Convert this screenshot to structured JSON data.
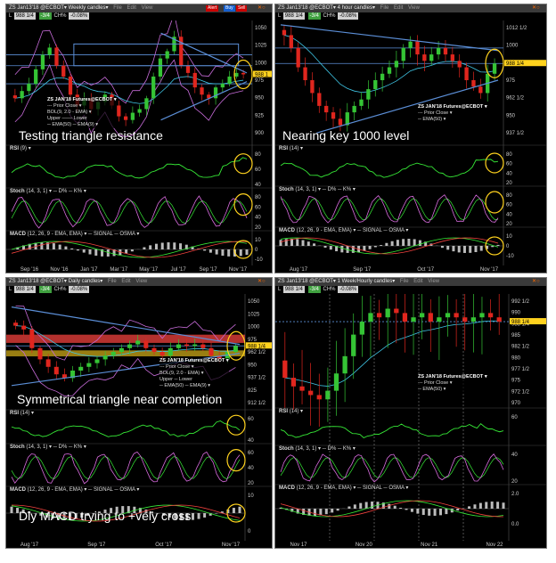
{
  "colors": {
    "up": "#35c435",
    "down": "#e0261e",
    "bb": "#c66bd8",
    "ema": "#3fc6e6",
    "trend": "#5b8ed6",
    "rsi": "#36e836",
    "stochD": "#36e836",
    "stochK": "#d86bde",
    "highlight": "#ffd21e",
    "resist": "#f0413d"
  },
  "panels": [
    {
      "title": "ZS Jan13'18 @ECBOT▾ Weekly candles▾",
      "menu": [
        "File",
        "Edit",
        "View"
      ],
      "buttons": [
        "Alert",
        "Buy",
        "Sell"
      ],
      "quote": {
        "sym": "L",
        "last": "988 1/4",
        "chg": "-3/4",
        "chg_pct": "CH%",
        "pct": "-0.08%"
      },
      "annotation": "Testing triangle resistance",
      "legend": [
        "ZS JAN'18 Futures@ECBOT ▾",
        "--- Prior Close ▾",
        "BOL(9, 2.0 - EMA) ▾",
        "Upper ─── Lower",
        "─ EMA(50) ─ EMA(9) ▾"
      ],
      "price_labels": [
        "1050",
        "1025",
        "1000",
        "975",
        "950",
        "925",
        "900"
      ],
      "price_tag": "988 1",
      "rsi_label": "RSI",
      "rsi_params": "(9) ▾",
      "rsi_levels": [
        "80",
        "60",
        "40"
      ],
      "stoch_label": "Stoch",
      "stoch_params": "(14, 3, 1) ▾ ─ D% ─ K% ▾",
      "stoch_levels": [
        "80",
        "60",
        "40",
        "20"
      ],
      "macd_label": "MACD",
      "macd_params": "(12, 26, 9 - EMA, EMA) ▾ ─ SIGNAL ─ OSMA ▾",
      "macd_levels": [
        "10",
        "0",
        "-10"
      ],
      "xlabels": [
        "Sep '16",
        "Nov '16",
        "Jan '17",
        "Mar '17",
        "May '17",
        "Jul '17",
        "Sep '17",
        "Nov '17"
      ]
    },
    {
      "title": "ZS Jan13'18 @ECBOT▾ 4 hour candles▾",
      "menu": [
        "File",
        "Edit",
        "View"
      ],
      "buttons": [],
      "quote": {
        "sym": "L",
        "last": "988 1/4",
        "chg": "-3/4",
        "chg_pct": "CH%",
        "pct": "-0.08%"
      },
      "annotation": "Nearing key 1000 level",
      "legend": [
        "ZS JAN'18 Futures@ECBOT ▾",
        "--- Prior Close ▾",
        "─ EMA(50) ▾"
      ],
      "price_labels": [
        "1012 1/2",
        "1000",
        "987 1/2",
        "975",
        "962 1/2",
        "950",
        "937 1/2"
      ],
      "price_tag": "988 1/4",
      "rsi_label": "RSI",
      "rsi_params": "(14) ▾",
      "rsi_levels": [
        "80",
        "60",
        "40",
        "20"
      ],
      "stoch_label": "Stoch",
      "stoch_params": "(14, 3, 1) ▾ ─ D% ─ K% ▾",
      "stoch_levels": [
        "80",
        "60",
        "40",
        "20"
      ],
      "macd_label": "MACD",
      "macd_params": "(12, 26, 9 - EMA, EMA) ▾ ─ SIGNAL ─ OSMA ▾",
      "macd_levels": [
        "10",
        "0",
        "-10"
      ],
      "xlabels": [
        "Aug '17",
        "Sep '17",
        "Oct '17",
        "Nov '17"
      ]
    },
    {
      "title": "ZS Jan13'18 @ECBOT▾ Daily candles▾",
      "menu": [
        "File",
        "Edit",
        "View"
      ],
      "buttons": [],
      "quote": {
        "sym": "L",
        "last": "988 1/4",
        "chg": "-3/4",
        "chg_pct": "CH%",
        "pct": "-0.08%"
      },
      "annotation": "Symmetrical triangle near completion",
      "annotation2": "Dly MACD trying to +vely cross",
      "legend": [
        "ZS JAN'18 Futures@ECBOT ▾",
        "--- Prior Close ▾",
        "BOL(9, 2.0 - EMA) ▾",
        "Upper ─ Lower",
        "─ EMA(50) ─ EMA(9) ▾"
      ],
      "price_labels": [
        "1050",
        "1025",
        "1000",
        "975",
        "962 1/2",
        "950",
        "937 1/2",
        "925",
        "912 1/2"
      ],
      "price_tag": "988 1/4",
      "rsi_label": "RSI",
      "rsi_params": "(14) ▾",
      "rsi_levels": [
        "60",
        "40"
      ],
      "stoch_label": "Stoch",
      "stoch_params": "(14, 3, 1) ▾ ─ D% ─ K% ▾",
      "stoch_levels": [
        "60",
        "40",
        "20"
      ],
      "macd_label": "MACD",
      "macd_params": "(12, 26, 9 - EMA, EMA) ▾ ─ SIGNAL ─ OSMA ▾",
      "macd_levels": [
        "10",
        "0"
      ],
      "xlabels": [
        "Aug '17",
        "Sep '17",
        "Oct '17",
        "Nov '17"
      ]
    },
    {
      "title": "ZS Jan13'18 @ECBOT▾ 1 Week/Hourly candles▾",
      "menu": [
        "File",
        "Edit",
        "View"
      ],
      "buttons": [],
      "quote": {
        "sym": "L",
        "last": "988 1/4",
        "chg": "-3/4",
        "chg_pct": "CH%",
        "pct": "-0.08%"
      },
      "annotation": "",
      "legend": [
        "ZS JAN'18 Futures@ECBOT ▾",
        "--- Prior Close ▾",
        "─ EMA(50) ▾"
      ],
      "price_labels": [
        "992 1/2",
        "990",
        "988 1/4",
        "985",
        "982 1/2",
        "980",
        "977 1/2",
        "975",
        "972 1/2",
        "970"
      ],
      "price_tag": "988 1/4",
      "rsi_label": "RSI",
      "rsi_params": "(14) ▾",
      "rsi_levels": [
        "60"
      ],
      "stoch_label": "Stoch",
      "stoch_params": "(14, 3, 1) ▾ ─ D% ─ K% ▾",
      "stoch_levels": [
        "40",
        "20"
      ],
      "macd_label": "MACD",
      "macd_params": "(12, 26, 9 - EMA, EMA) ▾ ─ SIGNAL ─ OSMA ▾",
      "macd_levels": [
        "2.0",
        "0.0"
      ],
      "xlabels": [
        "Nov 17",
        "Nov 20",
        "Nov 21",
        "Nov 22"
      ]
    }
  ],
  "chart_data": [
    {
      "type": "candlestick",
      "title": "ZS Jan13'18 @ECBOT Weekly candles",
      "timeframe": "Weekly",
      "x_range": [
        "Sep '16",
        "Nov '17"
      ],
      "ylim": [
        900,
        1060
      ],
      "series": [
        {
          "name": "close",
          "values": [
            955,
            965,
            975,
            995,
            1015,
            1025,
            1000,
            985,
            960,
            945,
            955,
            940,
            950,
            960,
            945,
            930,
            925,
            935,
            940,
            955,
            985,
            1010,
            1020,
            1040,
            1000,
            990,
            970,
            960,
            955,
            970,
            975,
            985,
            990,
            988
          ]
        }
      ],
      "indicators": [
        "RSI(9)",
        "Stoch(14,3,1)",
        "MACD(12,26,9)",
        "BOL(9,2.0)",
        "EMA(50)",
        "EMA(9)"
      ],
      "annotation": "Testing triangle resistance"
    },
    {
      "type": "candlestick",
      "title": "ZS Jan13'18 @ECBOT 4 hour candles",
      "timeframe": "4 hour",
      "x_range": [
        "Aug '17",
        "Nov '17"
      ],
      "ylim": [
        930,
        1020
      ],
      "series": [
        {
          "name": "close",
          "values": [
            1010,
            1000,
            985,
            975,
            965,
            955,
            950,
            945,
            940,
            950,
            955,
            960,
            968,
            975,
            980,
            985,
            990,
            1000,
            1005,
            995,
            990,
            995,
            1000,
            995,
            990,
            985,
            975,
            970,
            965,
            980,
            988
          ]
        }
      ],
      "indicators": [
        "RSI(14)",
        "Stoch(14,3,1)",
        "MACD(12,26,9)",
        "EMA(50)"
      ],
      "annotation": "Nearing key 1000 level"
    },
    {
      "type": "candlestick",
      "title": "ZS Jan13'18 @ECBOT Daily candles",
      "timeframe": "Daily",
      "x_range": [
        "Aug '17",
        "Nov '17"
      ],
      "ylim": [
        905,
        1055
      ],
      "series": [
        {
          "name": "close",
          "values": [
            1015,
            1010,
            985,
            970,
            960,
            950,
            945,
            955,
            960,
            965,
            970,
            975,
            980,
            985,
            990,
            995,
            985,
            980,
            975,
            985,
            990,
            988,
            990,
            985,
            975,
            970,
            980,
            988
          ]
        }
      ],
      "indicators": [
        "RSI(14)",
        "Stoch(14,3,1)",
        "MACD(12,26,9)",
        "BOL(9,2.0)",
        "EMA(50)",
        "EMA(9)"
      ],
      "annotation": "Symmetrical triangle near completion; Dly MACD trying to +vely cross"
    },
    {
      "type": "candlestick",
      "title": "ZS Jan13'18 @ECBOT 1 Week/Hourly candles",
      "timeframe": "Hourly",
      "x_range": [
        "Nov 17",
        "Nov 22"
      ],
      "ylim": [
        968,
        994
      ],
      "series": [
        {
          "name": "close",
          "values": [
            975,
            973,
            972,
            971,
            970,
            972,
            976,
            980,
            985,
            988,
            990,
            989,
            991,
            990,
            988,
            989,
            990,
            988,
            989,
            990,
            989,
            988,
            989,
            990,
            989,
            988
          ]
        }
      ],
      "indicators": [
        "RSI(14)",
        "Stoch(14,3,1)",
        "MACD(12,26,9)",
        "EMA(50)"
      ],
      "annotation": ""
    }
  ]
}
